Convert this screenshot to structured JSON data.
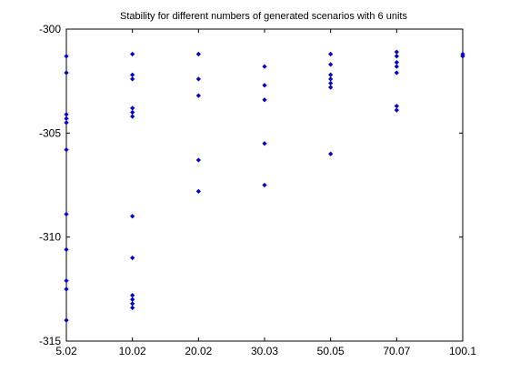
{
  "chart_data": {
    "type": "scatter",
    "title": "Stability for different numbers of generated scenarios with 6 units",
    "xlabel": "",
    "ylabel": "",
    "x_tick_labels": [
      "5.02",
      "10.02",
      "20.02",
      "30.03",
      "50.05",
      "70.07",
      "100.1"
    ],
    "y_tick_labels": [
      "-300",
      "-305",
      "-310",
      "-315"
    ],
    "y_ticks": [
      -300,
      -305,
      -310,
      -315
    ],
    "ylim": [
      -315,
      -300
    ],
    "grid": false,
    "marker_color": "#0000cc",
    "series": [
      {
        "x_category": "5.02",
        "y": [
          -301.3,
          -302.1,
          -304.1,
          -304.3,
          -304.5,
          -305.8,
          -308.9,
          -310.6,
          -312.1,
          -312.5,
          -314.0
        ]
      },
      {
        "x_category": "10.02",
        "y": [
          -301.2,
          -302.2,
          -302.4,
          -303.8,
          -304.0,
          -304.2,
          -309.0,
          -311.0,
          -312.8,
          -313.0,
          -313.2,
          -313.4
        ]
      },
      {
        "x_category": "20.02",
        "y": [
          -301.2,
          -302.4,
          -303.2,
          -306.3,
          -307.8
        ]
      },
      {
        "x_category": "30.03",
        "y": [
          -301.8,
          -302.7,
          -303.4,
          -305.5,
          -307.5
        ]
      },
      {
        "x_category": "50.05",
        "y": [
          -301.2,
          -301.7,
          -302.2,
          -302.4,
          -302.6,
          -302.8,
          -306.0
        ]
      },
      {
        "x_category": "70.07",
        "y": [
          -301.1,
          -301.3,
          -301.6,
          -301.8,
          -302.1,
          -303.7,
          -303.9
        ]
      },
      {
        "x_category": "100.1",
        "y": [
          -301.2,
          -301.3
        ]
      }
    ]
  }
}
